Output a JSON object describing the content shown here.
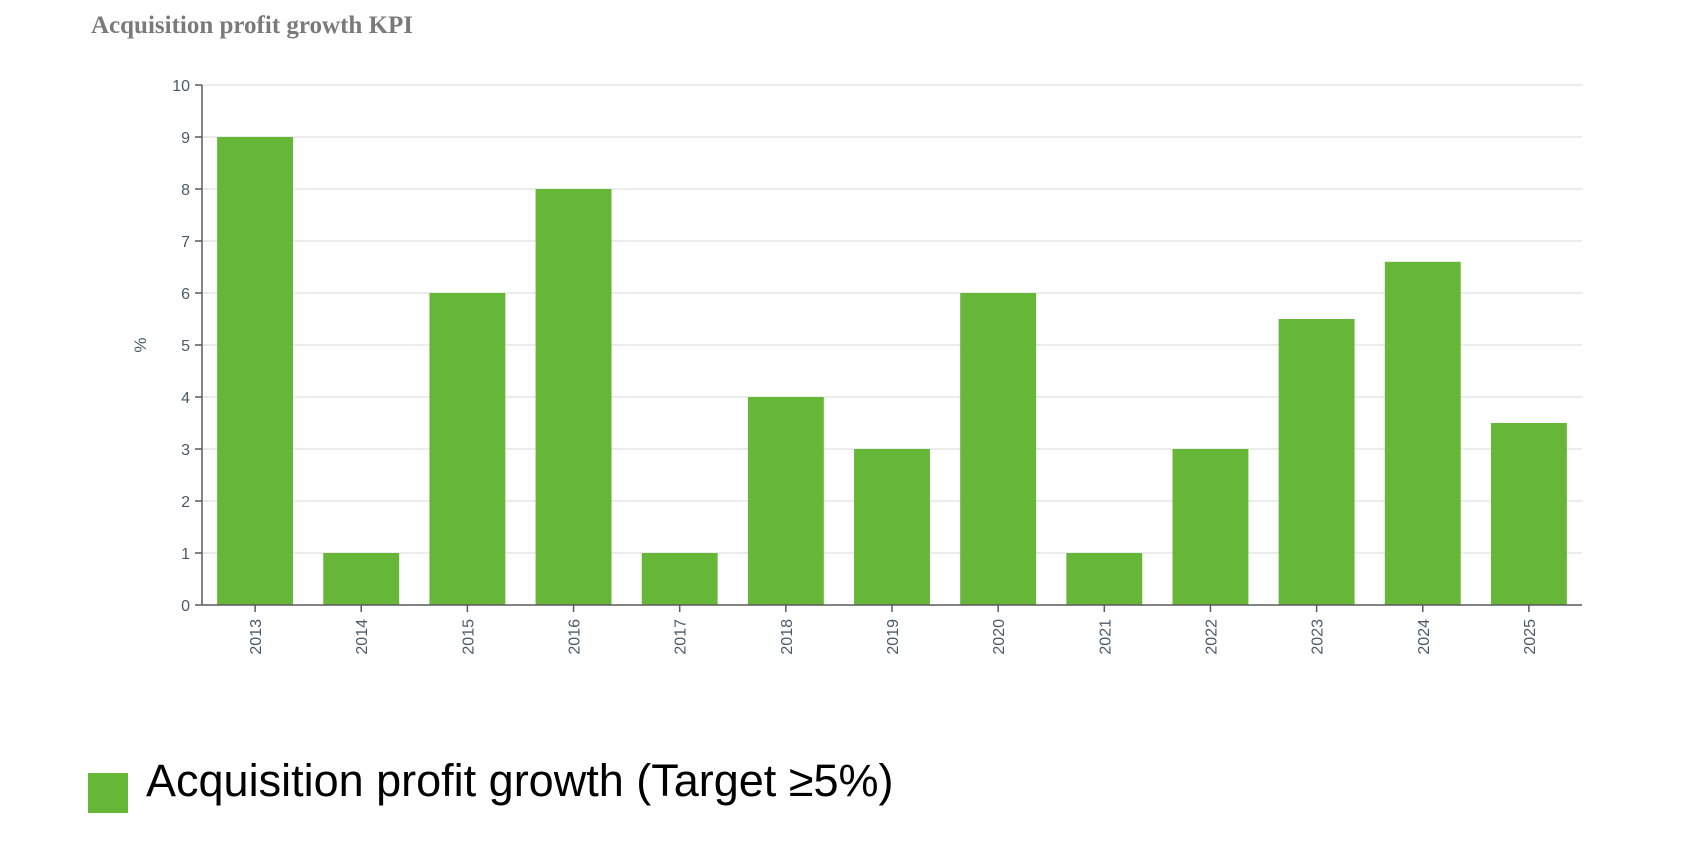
{
  "title": "Acquisition profit growth KPI",
  "colors": {
    "bar": "#66b638",
    "grid": "#d9d9d9",
    "axis": "#5a5a5a",
    "tick_text": "#4a5a6a",
    "title": "#7a7a7a"
  },
  "legend": {
    "label": "Acquisition profit growth (Target ≥5%)"
  },
  "chart_data": {
    "type": "bar",
    "title": "Acquisition profit growth KPI",
    "xlabel": "",
    "ylabel": "%",
    "categories": [
      "2013",
      "2014",
      "2015",
      "2016",
      "2017",
      "2018",
      "2019",
      "2020",
      "2021",
      "2022",
      "2023",
      "2024",
      "2025"
    ],
    "series": [
      {
        "name": "Acquisition profit growth (Target ≥5%)",
        "values": [
          9,
          1,
          6,
          8,
          1,
          4,
          3,
          6,
          1,
          3,
          5.5,
          6.6,
          3.5
        ]
      }
    ],
    "ylim": [
      0,
      10
    ],
    "yticks": [
      "0",
      "1",
      "2",
      "3",
      "4",
      "5",
      "6",
      "7",
      "8",
      "9",
      "10"
    ],
    "grid": true,
    "legend_position": "bottom-left"
  }
}
